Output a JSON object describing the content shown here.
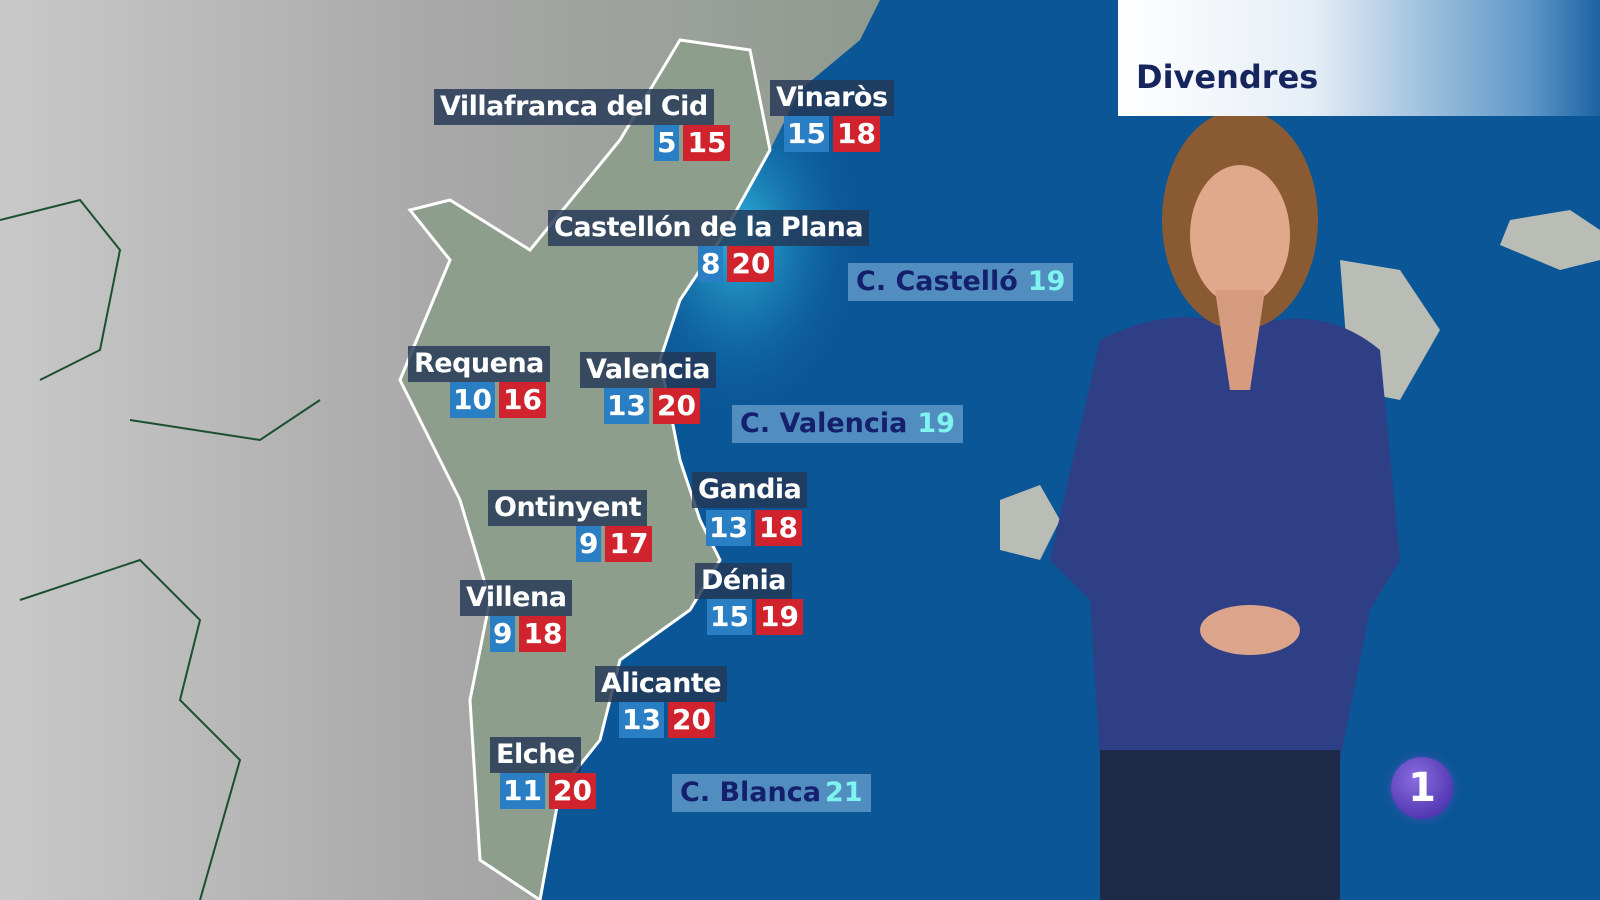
{
  "header": {
    "day": "Divendres"
  },
  "cities": [
    {
      "name": "Villafranca del Cid",
      "min": "5",
      "max": "15"
    },
    {
      "name": "Vinaròs",
      "min": "15",
      "max": "18"
    },
    {
      "name": "Castellón de la Plana",
      "min": "8",
      "max": "20"
    },
    {
      "name": "Requena",
      "min": "10",
      "max": "16"
    },
    {
      "name": "Valencia",
      "min": "13",
      "max": "20"
    },
    {
      "name": "Ontinyent",
      "min": "9",
      "max": "17"
    },
    {
      "name": "Gandia",
      "min": "13",
      "max": "18"
    },
    {
      "name": "Villena",
      "min": "9",
      "max": "18"
    },
    {
      "name": "Dénia",
      "min": "15",
      "max": "19"
    },
    {
      "name": "Alicante",
      "min": "13",
      "max": "20"
    },
    {
      "name": "Elche",
      "min": "11",
      "max": "20"
    }
  ],
  "sea": [
    {
      "name": "C. Castelló",
      "temp": "19"
    },
    {
      "name": "C. Valencia",
      "temp": "19"
    },
    {
      "name": "C. Blanca",
      "temp": "21"
    }
  ],
  "colors": {
    "min": "#2a7fc4",
    "max": "#d0232e",
    "sea": "#0a4f8f",
    "land": "#9aa59a"
  },
  "channel_logo": "1"
}
